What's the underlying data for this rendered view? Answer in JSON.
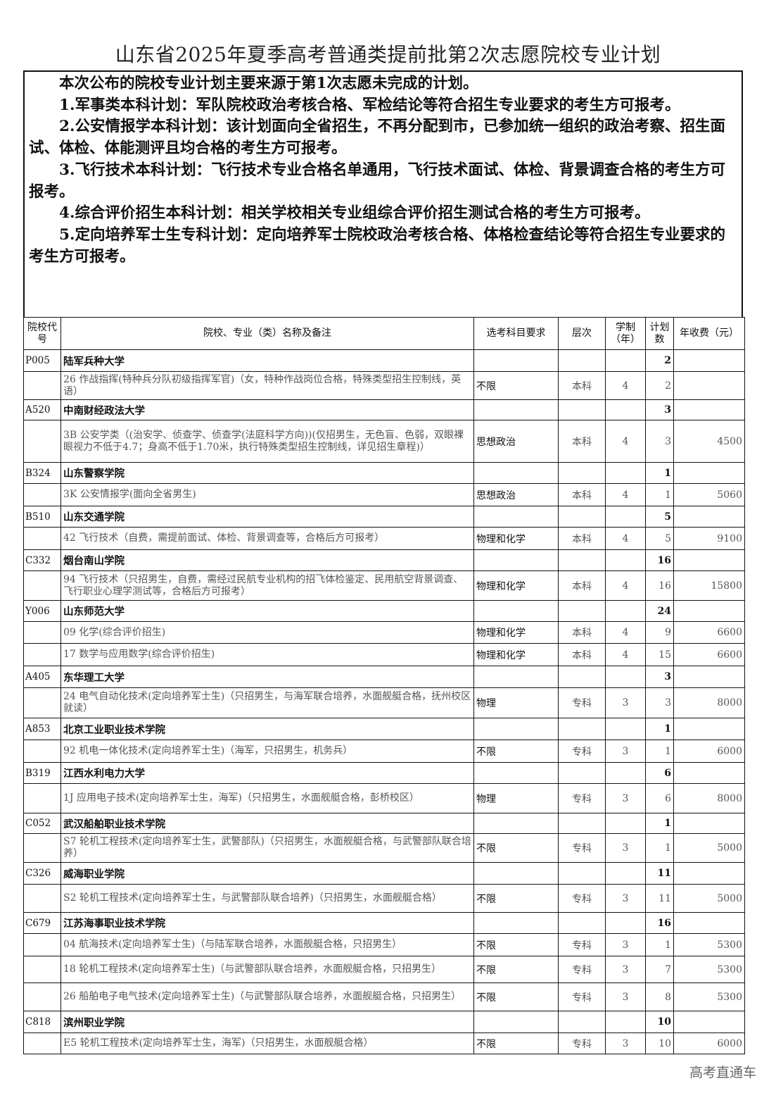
{
  "title": "山东省2025年夏季高考普通类提前批第2次志愿院校专业计划",
  "intro": [
    "本次公布的院校专业计划主要来源于第1次志愿未完成的计划。",
    "1.军事类本科计划：军队院校政治考核合格、军检结论等符合招生专业要求的考生方可报考。",
    "2.公安情报学本科计划：该计划面向全省招生，不再分配到市，已参加统一组织的政治考察、招生面试、体检、体能测评且均合格的考生方可报考。",
    "3.飞行技术本科计划：飞行技术专业合格名单通用，飞行技术面试、体检、背景调查合格的考生方可报考。",
    "4.综合评价招生本科计划：相关学校相关专业组综合评价招生测试合格的考生方可报考。",
    "5.定向培养军士生专科计划：定向培养军士院校政治考核合格、体格检查结论等符合招生专业要求的考生方可报考。"
  ],
  "headers": [
    "院校代号",
    "院校、专业（类）名称及备注",
    "选考科目要求",
    "层次",
    "学制（年）",
    "计划数",
    "年收费（元）"
  ],
  "rows": [
    {
      "type": "school",
      "code": "P005",
      "name": "陆军兵种大学",
      "plan": "2"
    },
    {
      "type": "major",
      "name": "26 作战指挥(特种兵分队初级指挥军官)（女，特种作战岗位合格，特殊类型招生控制线，英语）",
      "subject": "不限",
      "level": "本科",
      "years": "4",
      "plan": "2",
      "fee": ""
    },
    {
      "type": "school",
      "code": "A520",
      "name": "中南财经政法大学",
      "plan": "3"
    },
    {
      "type": "major",
      "name": "3B 公安学类（(治安学、侦查学、侦查学(法庭科学方向))(仅招男生，无色盲、色弱，双眼裸眼视力不低于4.7；身高不低于1.70米，执行特殊类型招生控制线，详见招生章程)）",
      "subject": "思想政治",
      "level": "本科",
      "years": "4",
      "plan": "3",
      "fee": "4500"
    },
    {
      "type": "school",
      "code": "B324",
      "name": "山东警察学院",
      "plan": "1"
    },
    {
      "type": "major",
      "name": "3K 公安情报学(面向全省男生)",
      "subject": "思想政治",
      "level": "本科",
      "years": "4",
      "plan": "1",
      "fee": "5060"
    },
    {
      "type": "school",
      "code": "B510",
      "name": "山东交通学院",
      "plan": "5"
    },
    {
      "type": "major",
      "name": "42 飞行技术（自费，需提前面试、体检、背景调查等，合格后方可报考）",
      "subject": "物理和化学",
      "level": "本科",
      "years": "4",
      "plan": "5",
      "fee": "9100"
    },
    {
      "type": "school",
      "code": "C332",
      "name": "烟台南山学院",
      "plan": "16"
    },
    {
      "type": "major",
      "name": "94 飞行技术（只招男生，自费，需经过民航专业机构的招飞体检鉴定、民用航空背景调查、飞行职业心理学测试等，合格后方可报考）",
      "subject": "物理和化学",
      "level": "本科",
      "years": "4",
      "plan": "16",
      "fee": "15800"
    },
    {
      "type": "school",
      "code": "Y006",
      "name": "山东师范大学",
      "plan": "24"
    },
    {
      "type": "major",
      "name": "09 化学(综合评价招生)",
      "subject": "物理和化学",
      "level": "本科",
      "years": "4",
      "plan": "9",
      "fee": "6600"
    },
    {
      "type": "major",
      "name": "17 数学与应用数学(综合评价招生)",
      "subject": "物理和化学",
      "level": "本科",
      "years": "4",
      "plan": "15",
      "fee": "6600"
    },
    {
      "type": "school",
      "code": "A405",
      "name": "东华理工大学",
      "plan": "3"
    },
    {
      "type": "major",
      "name": "24 电气自动化技术(定向培养军士生)（只招男生，与海军联合培养，水面舰艇合格，抚州校区就读）",
      "subject": "物理",
      "level": "专科",
      "years": "3",
      "plan": "3",
      "fee": "8000"
    },
    {
      "type": "school",
      "code": "A853",
      "name": "北京工业职业技术学院",
      "plan": "1"
    },
    {
      "type": "major",
      "name": "92 机电一体化技术(定向培养军士生)（海军，只招男生，机务兵）",
      "subject": "不限",
      "level": "专科",
      "years": "3",
      "plan": "1",
      "fee": "6000"
    },
    {
      "type": "school",
      "code": "B319",
      "name": "江西水利电力大学",
      "plan": "6"
    },
    {
      "type": "major",
      "name": "1J 应用电子技术(定向培养军士生，海军)（只招男生，水面舰艇合格，彭桥校区）",
      "subject": "物理",
      "level": "专科",
      "years": "3",
      "plan": "6",
      "fee": "8000"
    },
    {
      "type": "school",
      "code": "C052",
      "name": "武汉船舶职业技术学院",
      "plan": "1"
    },
    {
      "type": "major",
      "name": "S7 轮机工程技术(定向培养军士生，武警部队)（只招男生，水面舰艇合格，与武警部队联合培养）",
      "subject": "不限",
      "level": "专科",
      "years": "3",
      "plan": "1",
      "fee": "5000"
    },
    {
      "type": "school",
      "code": "C326",
      "name": "威海职业学院",
      "plan": "11"
    },
    {
      "type": "major",
      "name": "S2 轮机工程技术(定向培养军士生，与武警部队联合培养)（只招男生，水面舰艇合格）",
      "subject": "不限",
      "level": "专科",
      "years": "3",
      "plan": "11",
      "fee": "5000"
    },
    {
      "type": "school",
      "code": "C679",
      "name": "江苏海事职业技术学院",
      "plan": "16"
    },
    {
      "type": "major",
      "name": "04 航海技术(定向培养军士生)（与陆军联合培养，水面舰艇合格，只招男生）",
      "subject": "不限",
      "level": "专科",
      "years": "3",
      "plan": "1",
      "fee": "5300"
    },
    {
      "type": "major",
      "name": "18 轮机工程技术(定向培养军士生)（与武警部队联合培养，水面舰艇合格，只招男生）",
      "subject": "不限",
      "level": "专科",
      "years": "3",
      "plan": "7",
      "fee": "5300"
    },
    {
      "type": "major",
      "name": "26 船舶电子电气技术(定向培养军士生)（与武警部队联合培养，水面舰艇合格，只招男生）",
      "subject": "不限",
      "level": "专科",
      "years": "3",
      "plan": "8",
      "fee": "5300"
    },
    {
      "type": "school",
      "code": "C818",
      "name": "滨州职业学院",
      "plan": "10"
    },
    {
      "type": "major",
      "name": "E5 轮机工程技术(定向培养军士生，海军)（只招男生，水面舰艇合格）",
      "subject": "不限",
      "level": "专科",
      "years": "3",
      "plan": "10",
      "fee": "6000"
    }
  ],
  "watermark": "高考直通车"
}
